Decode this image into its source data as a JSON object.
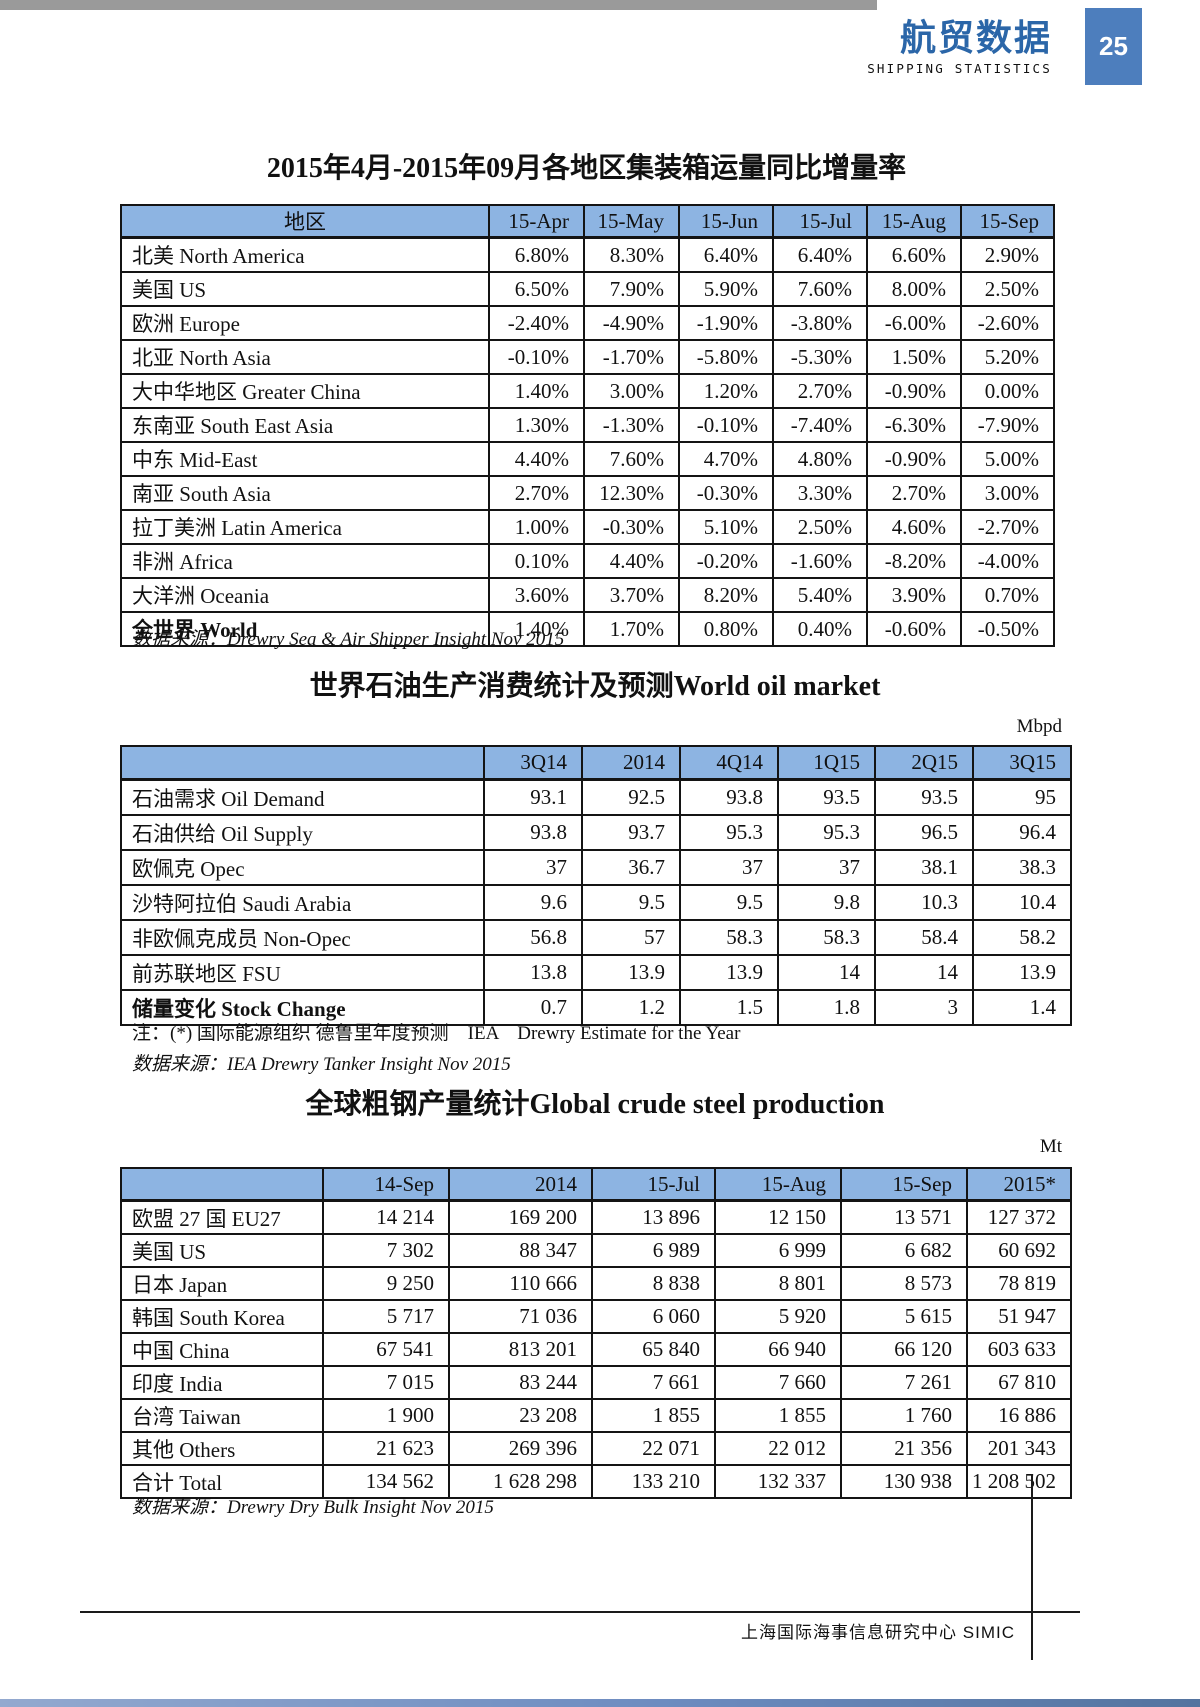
{
  "header": {
    "brand_cn": "航贸数据",
    "brand_en": "SHIPPING STATISTICS",
    "page_number": "25"
  },
  "sections": [
    {
      "title": "2015年4月-2015年09月各地区集装箱运量同比增量率",
      "unit": "",
      "columns": [
        "地区",
        "15-Apr",
        "15-May",
        "15-Jun",
        "15-Jul",
        "15-Aug",
        "15-Sep"
      ],
      "rows": [
        [
          "北美 North America",
          "6.80%",
          "8.30%",
          "6.40%",
          "6.40%",
          "6.60%",
          "2.90%"
        ],
        [
          "美国 US",
          "6.50%",
          "7.90%",
          "5.90%",
          "7.60%",
          "8.00%",
          "2.50%"
        ],
        [
          "欧洲 Europe",
          "-2.40%",
          "-4.90%",
          "-1.90%",
          "-3.80%",
          "-6.00%",
          "-2.60%"
        ],
        [
          "北亚 North Asia",
          "-0.10%",
          "-1.70%",
          "-5.80%",
          "-5.30%",
          "1.50%",
          "5.20%"
        ],
        [
          "大中华地区 Greater China",
          "1.40%",
          "3.00%",
          "1.20%",
          "2.70%",
          "-0.90%",
          "0.00%"
        ],
        [
          "东南亚 South East Asia",
          "1.30%",
          "-1.30%",
          "-0.10%",
          "-7.40%",
          "-6.30%",
          "-7.90%"
        ],
        [
          "中东 Mid-East",
          "4.40%",
          "7.60%",
          "4.70%",
          "4.80%",
          "-0.90%",
          "5.00%"
        ],
        [
          "南亚 South Asia",
          "2.70%",
          "12.30%",
          "-0.30%",
          "3.30%",
          "2.70%",
          "3.00%"
        ],
        [
          "拉丁美洲 Latin America",
          "1.00%",
          "-0.30%",
          "5.10%",
          "2.50%",
          "4.60%",
          "-2.70%"
        ],
        [
          "非洲 Africa",
          "0.10%",
          "4.40%",
          "-0.20%",
          "-1.60%",
          "-8.20%",
          "-4.00%"
        ],
        [
          "大洋洲 Oceania",
          "3.60%",
          "3.70%",
          "8.20%",
          "5.40%",
          "3.90%",
          "0.70%"
        ],
        [
          "全世界 World",
          "1.40%",
          "1.70%",
          "0.80%",
          "0.40%",
          "-0.60%",
          "-0.50%"
        ]
      ],
      "note": "",
      "source": "数据来源：Drewry Sea & Air Shipper Insight Nov 2015"
    },
    {
      "title": "世界石油生产消费统计及预测World oil market",
      "unit": "Mbpd",
      "columns": [
        "",
        "3Q14",
        "2014",
        "4Q14",
        "1Q15",
        "2Q15",
        "3Q15"
      ],
      "rows": [
        [
          "石油需求 Oil Demand",
          "93.1",
          "92.5",
          "93.8",
          "93.5",
          "93.5",
          "95"
        ],
        [
          "石油供给 Oil Supply",
          "93.8",
          "93.7",
          "95.3",
          "95.3",
          "96.5",
          "96.4"
        ],
        [
          "欧佩克 Opec",
          "37",
          "36.7",
          "37",
          "37",
          "38.1",
          "38.3"
        ],
        [
          "沙特阿拉伯 Saudi Arabia",
          "9.6",
          "9.5",
          "9.5",
          "9.8",
          "10.3",
          "10.4"
        ],
        [
          "非欧佩克成员 Non-Opec",
          "56.8",
          "57",
          "58.3",
          "58.3",
          "58.4",
          "58.2"
        ],
        [
          "前苏联地区 FSU",
          "13.8",
          "13.9",
          "13.9",
          "14",
          "14",
          "13.9"
        ],
        [
          "储量变化 Stock Change",
          "0.7",
          "1.2",
          "1.5",
          "1.8",
          "3",
          "1.4"
        ]
      ],
      "note": "注：(*) 国际能源组织 德鲁里年度预测　IEA　Drewry Estimate for the Year",
      "source": "数据来源：IEA Drewry Tanker Insight Nov 2015"
    },
    {
      "title": "全球粗钢产量统计Global crude steel production",
      "unit": "Mt",
      "columns": [
        "",
        "14-Sep",
        "2014",
        "15-Jul",
        "15-Aug",
        "15-Sep",
        "2015*"
      ],
      "rows": [
        [
          "欧盟 27 国 EU27",
          "14 214",
          "169 200",
          "13 896",
          "12 150",
          "13 571",
          "127 372"
        ],
        [
          "美国 US",
          "7 302",
          "88 347",
          "6 989",
          "6 999",
          "6 682",
          "60 692"
        ],
        [
          "日本 Japan",
          "9 250",
          "110 666",
          "8 838",
          "8 801",
          "8 573",
          "78 819"
        ],
        [
          "韩国 South Korea",
          "5 717",
          "71 036",
          "6 060",
          "5 920",
          "5 615",
          "51 947"
        ],
        [
          "中国 China",
          "67 541",
          "813 201",
          "65 840",
          "66 940",
          "66 120",
          "603 633"
        ],
        [
          "印度 India",
          "7 015",
          "83 244",
          "7 661",
          "7 660",
          "7 261",
          "67 810"
        ],
        [
          "台湾 Taiwan",
          "1 900",
          "23 208",
          "1 855",
          "1 855",
          "1 760",
          "16 886"
        ],
        [
          "其他 Others",
          "21 623",
          "269 396",
          "22 071",
          "22 012",
          "21 356",
          "201 343"
        ],
        [
          "合计 Total",
          "134 562",
          "1 628 298",
          "133 210",
          "132 337",
          "130 938",
          "1 208 502"
        ]
      ],
      "note": "",
      "source": "数据来源：Drewry Dry Bulk Insight Nov 2015"
    }
  ],
  "footer": {
    "text": "上海国际海事信息研究中心 SIMIC"
  },
  "colors": {
    "accent_blue": "#2B66A8",
    "table_header_bg": "#8DB4E2",
    "badge_bg": "#4D7EBD",
    "bar_gray": "#9A9A9A",
    "bottom_strip_blue": "#6D8CC0",
    "rule_black": "#1A1A1A"
  }
}
